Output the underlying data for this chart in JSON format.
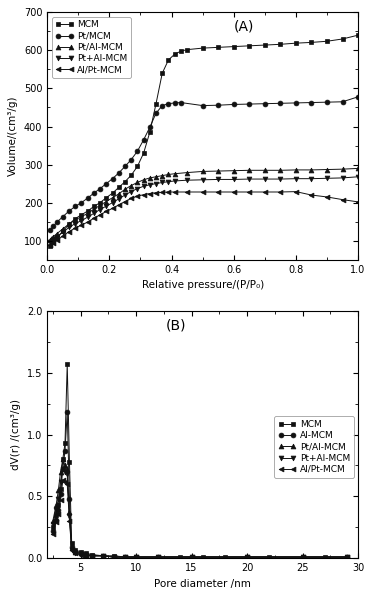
{
  "panel_A": {
    "label": "(A)",
    "xlabel": "Relative pressure/(P/P₀)",
    "ylabel": "Volume/(cm³/g)",
    "xlim": [
      0.0,
      1.0
    ],
    "ylim": [
      50,
      700
    ],
    "yticks": [
      100,
      200,
      300,
      400,
      500,
      600,
      700
    ],
    "xticks": [
      0.0,
      0.2,
      0.4,
      0.6,
      0.8,
      1.0
    ],
    "series": [
      {
        "label": "MCM",
        "marker": "s",
        "color": "#111111",
        "x": [
          0.01,
          0.02,
          0.03,
          0.05,
          0.07,
          0.09,
          0.11,
          0.13,
          0.15,
          0.17,
          0.19,
          0.21,
          0.23,
          0.25,
          0.27,
          0.29,
          0.31,
          0.33,
          0.35,
          0.37,
          0.39,
          0.41,
          0.43,
          0.45,
          0.5,
          0.55,
          0.6,
          0.65,
          0.7,
          0.75,
          0.8,
          0.85,
          0.9,
          0.95,
          1.0
        ],
        "y": [
          85,
          96,
          107,
          125,
          143,
          158,
          168,
          178,
          190,
          200,
          213,
          225,
          240,
          255,
          272,
          295,
          330,
          385,
          460,
          540,
          575,
          590,
          598,
          602,
          606,
          608,
          610,
          612,
          614,
          616,
          619,
          621,
          624,
          630,
          640
        ]
      },
      {
        "label": "Pt/MCM",
        "marker": "o",
        "color": "#111111",
        "x": [
          0.01,
          0.02,
          0.03,
          0.05,
          0.07,
          0.09,
          0.11,
          0.13,
          0.15,
          0.17,
          0.19,
          0.21,
          0.23,
          0.25,
          0.27,
          0.29,
          0.31,
          0.33,
          0.35,
          0.37,
          0.39,
          0.41,
          0.43,
          0.5,
          0.55,
          0.6,
          0.65,
          0.7,
          0.75,
          0.8,
          0.85,
          0.9,
          0.95,
          1.0
        ],
        "y": [
          128,
          138,
          148,
          163,
          178,
          190,
          200,
          212,
          225,
          237,
          250,
          263,
          278,
          295,
          313,
          335,
          365,
          398,
          435,
          455,
          460,
          462,
          463,
          455,
          456,
          458,
          459,
          460,
          461,
          462,
          463,
          464,
          465,
          478
        ]
      },
      {
        "label": "Pt/Al-MCM",
        "marker": "^",
        "color": "#111111",
        "x": [
          0.01,
          0.02,
          0.03,
          0.05,
          0.07,
          0.09,
          0.11,
          0.13,
          0.15,
          0.17,
          0.19,
          0.21,
          0.23,
          0.25,
          0.27,
          0.29,
          0.31,
          0.33,
          0.35,
          0.37,
          0.39,
          0.41,
          0.45,
          0.5,
          0.55,
          0.6,
          0.65,
          0.7,
          0.75,
          0.8,
          0.85,
          0.9,
          0.95,
          1.0
        ],
        "y": [
          103,
          111,
          118,
          131,
          144,
          155,
          163,
          172,
          183,
          193,
          203,
          213,
          223,
          235,
          245,
          253,
          260,
          265,
          268,
          271,
          274,
          276,
          279,
          282,
          283,
          284,
          285,
          285,
          285,
          286,
          286,
          287,
          288,
          290
        ]
      },
      {
        "label": "Pt+Al-MCM",
        "marker": "v",
        "color": "#111111",
        "x": [
          0.01,
          0.02,
          0.03,
          0.05,
          0.07,
          0.09,
          0.11,
          0.13,
          0.15,
          0.17,
          0.19,
          0.21,
          0.23,
          0.25,
          0.27,
          0.29,
          0.31,
          0.33,
          0.35,
          0.37,
          0.39,
          0.41,
          0.45,
          0.5,
          0.55,
          0.6,
          0.65,
          0.7,
          0.75,
          0.8,
          0.85,
          0.9,
          0.95,
          1.0
        ],
        "y": [
          96,
          104,
          110,
          122,
          135,
          145,
          153,
          162,
          172,
          182,
          191,
          200,
          210,
          220,
          229,
          237,
          243,
          247,
          250,
          253,
          255,
          257,
          259,
          260,
          261,
          261,
          262,
          262,
          262,
          263,
          263,
          264,
          265,
          268
        ]
      },
      {
        "label": "Al/Pt-MCM",
        "marker": "<",
        "color": "#111111",
        "x": [
          0.01,
          0.02,
          0.03,
          0.05,
          0.07,
          0.09,
          0.11,
          0.13,
          0.15,
          0.17,
          0.19,
          0.21,
          0.23,
          0.25,
          0.27,
          0.29,
          0.31,
          0.33,
          0.35,
          0.37,
          0.39,
          0.41,
          0.45,
          0.5,
          0.55,
          0.6,
          0.65,
          0.7,
          0.75,
          0.8,
          0.85,
          0.9,
          0.95,
          1.0
        ],
        "y": [
          88,
          95,
          101,
          112,
          124,
          133,
          141,
          149,
          159,
          168,
          177,
          185,
          194,
          203,
          211,
          217,
          221,
          224,
          226,
          227,
          228,
          228,
          228,
          228,
          228,
          228,
          228,
          228,
          228,
          229,
          220,
          215,
          208,
          202
        ]
      }
    ]
  },
  "panel_B": {
    "label": "(B)",
    "xlabel": "Pore diameter /nm",
    "ylabel": "dV(r) /(cm³/g)",
    "xlim": [
      2,
      30
    ],
    "ylim": [
      0.0,
      2.0
    ],
    "yticks": [
      0.0,
      0.5,
      1.0,
      1.5,
      2.0
    ],
    "xticks": [
      5,
      10,
      15,
      20,
      25,
      30
    ],
    "series": [
      {
        "label": "MCM",
        "marker": "s",
        "color": "#111111",
        "x": [
          2.5,
          2.8,
          3.0,
          3.2,
          3.4,
          3.6,
          3.8,
          4.0,
          4.2,
          4.5,
          5.0,
          5.5,
          6.0,
          7.0,
          8.0,
          9.0,
          10.0,
          12.0,
          14.0,
          16.0,
          18.0,
          20.0,
          22.0,
          25.0,
          27.0,
          29.0
        ],
        "y": [
          0.25,
          0.35,
          0.43,
          0.56,
          0.8,
          0.93,
          1.57,
          0.78,
          0.12,
          0.07,
          0.05,
          0.04,
          0.03,
          0.02,
          0.02,
          0.01,
          0.01,
          0.01,
          0.01,
          0.01,
          0.01,
          0.01,
          0.01,
          0.01,
          0.01,
          0.01
        ]
      },
      {
        "label": "Al-MCM",
        "marker": "o",
        "color": "#111111",
        "x": [
          2.5,
          2.8,
          3.0,
          3.2,
          3.4,
          3.6,
          3.8,
          4.0,
          4.2,
          4.5,
          5.0,
          5.5,
          6.0,
          7.0,
          8.0,
          9.0,
          10.0,
          12.0,
          15.0,
          20.0,
          25.0,
          29.0
        ],
        "y": [
          0.22,
          0.31,
          0.39,
          0.52,
          0.72,
          0.87,
          1.18,
          0.48,
          0.09,
          0.05,
          0.04,
          0.03,
          0.02,
          0.02,
          0.01,
          0.01,
          0.01,
          0.01,
          0.01,
          0.01,
          0.01,
          0.01
        ]
      },
      {
        "label": "Pt/Al-MCM",
        "marker": "^",
        "color": "#111111",
        "x": [
          2.5,
          2.8,
          3.0,
          3.2,
          3.4,
          3.6,
          3.8,
          4.0,
          4.2,
          4.5,
          5.0,
          5.5,
          6.0,
          7.0,
          8.0,
          9.0,
          10.0,
          12.0,
          15.0,
          20.0,
          25.0,
          29.0
        ],
        "y": [
          0.3,
          0.43,
          0.55,
          0.7,
          0.8,
          0.75,
          0.72,
          0.37,
          0.08,
          0.05,
          0.04,
          0.03,
          0.02,
          0.02,
          0.01,
          0.01,
          0.01,
          0.01,
          0.01,
          0.01,
          0.01,
          0.01
        ]
      },
      {
        "label": "Pt+Al-MCM",
        "marker": "v",
        "color": "#111111",
        "x": [
          2.5,
          2.8,
          3.0,
          3.2,
          3.4,
          3.6,
          3.8,
          4.0,
          4.2,
          4.5,
          5.0,
          5.5,
          6.0,
          7.0,
          8.0,
          9.0,
          10.0,
          12.0,
          15.0,
          20.0,
          25.0,
          29.0
        ],
        "y": [
          0.28,
          0.39,
          0.48,
          0.62,
          0.72,
          0.7,
          0.68,
          0.34,
          0.07,
          0.04,
          0.03,
          0.03,
          0.02,
          0.02,
          0.01,
          0.01,
          0.01,
          0.01,
          0.01,
          0.01,
          0.01,
          0.01
        ]
      },
      {
        "label": "Al/Pt-MCM",
        "marker": "<",
        "color": "#111111",
        "x": [
          2.5,
          2.8,
          3.0,
          3.2,
          3.4,
          3.6,
          3.8,
          4.0,
          4.2,
          4.5,
          5.0,
          5.5,
          6.0,
          7.0,
          8.0,
          9.0,
          10.0,
          12.0,
          15.0,
          20.0,
          25.0,
          29.0
        ],
        "y": [
          0.2,
          0.29,
          0.36,
          0.47,
          0.63,
          0.62,
          0.6,
          0.3,
          0.07,
          0.04,
          0.03,
          0.02,
          0.02,
          0.02,
          0.01,
          0.01,
          0.01,
          0.01,
          0.01,
          0.01,
          0.01,
          0.01
        ]
      }
    ]
  }
}
